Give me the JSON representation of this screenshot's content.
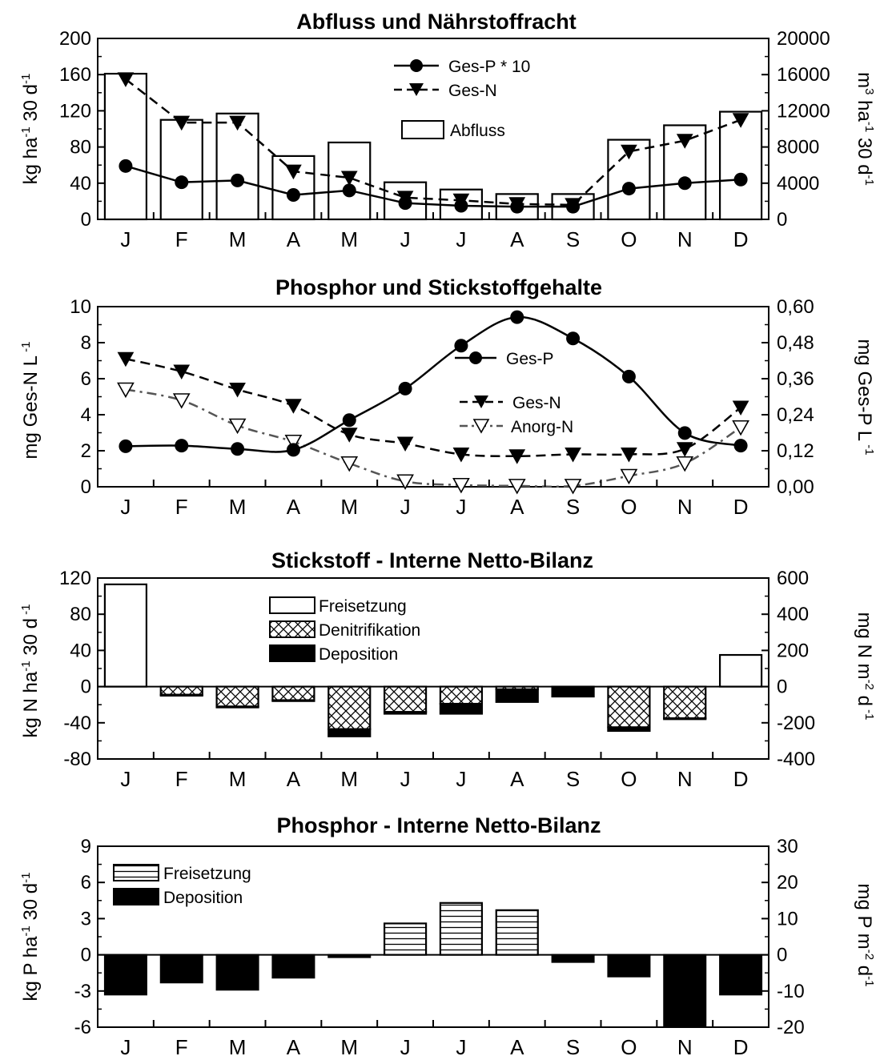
{
  "months": [
    "J",
    "F",
    "M",
    "A",
    "M",
    "J",
    "J",
    "A",
    "S",
    "O",
    "N",
    "D"
  ],
  "chart_data": [
    {
      "type": "bar",
      "title": "Abfluss und Nährstoffracht",
      "ylabel_left": "kg ha-1 30 d-1",
      "ylabel_right": "m3 ha-1 30 d-1",
      "ylim_left": [
        0,
        200
      ],
      "ylim_right": [
        0,
        20000
      ],
      "yticks_left": [
        "0",
        "40",
        "80",
        "120",
        "160",
        "200"
      ],
      "yticks_right": [
        "0",
        "4000",
        "8000",
        "12000",
        "16000",
        "20000"
      ],
      "legend": [
        "Ges-P * 10",
        "Ges-N",
        "Abfluss"
      ],
      "series": [
        {
          "name": "Abfluss",
          "kind": "bar",
          "axis": "right",
          "values": [
            16100,
            11000,
            11700,
            7000,
            8500,
            4100,
            3300,
            2800,
            2800,
            8800,
            10400,
            11900
          ]
        },
        {
          "name": "Ges-P * 10",
          "kind": "line",
          "axis": "left",
          "values": [
            59,
            41,
            43,
            27,
            32,
            18,
            15,
            14,
            14,
            34,
            40,
            44
          ]
        },
        {
          "name": "Ges-N",
          "kind": "line",
          "axis": "left",
          "values": [
            155,
            107,
            107,
            53,
            46,
            24,
            21,
            17,
            16,
            75,
            87,
            110
          ]
        }
      ]
    },
    {
      "type": "line",
      "title": "Phosphor und Stickstoffgehalte",
      "ylabel_left": "mg Ges-N L-1",
      "ylabel_right": "mg Ges-P L-1",
      "ylim_left": [
        0,
        10
      ],
      "ylim_right": [
        0,
        0.6
      ],
      "yticks_left": [
        "0",
        "2",
        "4",
        "6",
        "8",
        "10"
      ],
      "yticks_right": [
        "0,00",
        "0,12",
        "0,24",
        "0,36",
        "0,48",
        "0,60"
      ],
      "legend": [
        "Ges-P",
        "Ges-N",
        "Anorg-N"
      ],
      "series": [
        {
          "name": "Ges-P",
          "axis": "right",
          "values": [
            0.135,
            0.137,
            0.126,
            0.123,
            0.222,
            0.327,
            0.47,
            0.565,
            0.494,
            0.367,
            0.179,
            0.137
          ]
        },
        {
          "name": "Ges-N",
          "axis": "left",
          "values": [
            7.1,
            6.4,
            5.4,
            4.5,
            2.9,
            2.4,
            1.8,
            1.7,
            1.8,
            1.8,
            2.1,
            4.4
          ]
        },
        {
          "name": "Anorg-N",
          "axis": "left",
          "values": [
            5.4,
            4.8,
            3.4,
            2.5,
            1.3,
            0.3,
            0.1,
            0.05,
            0.05,
            0.6,
            1.3,
            3.3
          ]
        }
      ]
    },
    {
      "type": "bar",
      "title": "Stickstoff - Interne Netto-Bilanz",
      "ylabel_left": "kg N ha-1 30 d-1",
      "ylabel_right": "mg N m-2 d-1",
      "ylim_left": [
        -80,
        120
      ],
      "ylim_right": [
        -400,
        600
      ],
      "yticks_left": [
        "-80",
        "-40",
        "0",
        "40",
        "80",
        "120"
      ],
      "yticks_right": [
        "-400",
        "-200",
        "0",
        "200",
        "400",
        "600"
      ],
      "legend": [
        "Freisetzung",
        "Denitrifikation",
        "Deposition"
      ],
      "series": [
        {
          "name": "Freisetzung",
          "values": [
            113,
            0,
            0,
            0,
            0,
            0,
            0,
            0,
            0,
            0,
            0,
            35
          ]
        },
        {
          "name": "Denitrifikation",
          "values": [
            0,
            -9,
            -22,
            -15,
            -47,
            -28,
            -19,
            -3,
            0,
            -45,
            -35,
            0
          ]
        },
        {
          "name": "Deposition",
          "values": [
            0,
            -1,
            -1,
            -1,
            -8,
            -2,
            -11,
            -14,
            -11,
            -4,
            -1,
            0
          ]
        }
      ]
    },
    {
      "type": "bar",
      "title": "Phosphor - Interne Netto-Bilanz",
      "ylabel_left": "kg P ha-1 30 d-1",
      "ylabel_right": "mg P m-2 d-1",
      "ylim_left": [
        -6,
        9
      ],
      "ylim_right": [
        -20,
        30
      ],
      "yticks_left": [
        "-6",
        "-3",
        "0",
        "3",
        "6",
        "9"
      ],
      "yticks_right": [
        "-20",
        "-10",
        "0",
        "10",
        "20",
        "30"
      ],
      "legend": [
        "Freisetzung",
        "Deposition"
      ],
      "series": [
        {
          "name": "Freisetzung",
          "values": [
            0,
            0,
            0,
            0,
            0,
            2.6,
            4.3,
            3.7,
            0,
            0,
            0,
            0
          ]
        },
        {
          "name": "Deposition",
          "values": [
            -3.3,
            -2.3,
            -2.9,
            -1.9,
            -0.2,
            0,
            0,
            0,
            -0.6,
            -1.8,
            -6.0,
            -3.3
          ]
        }
      ]
    }
  ]
}
